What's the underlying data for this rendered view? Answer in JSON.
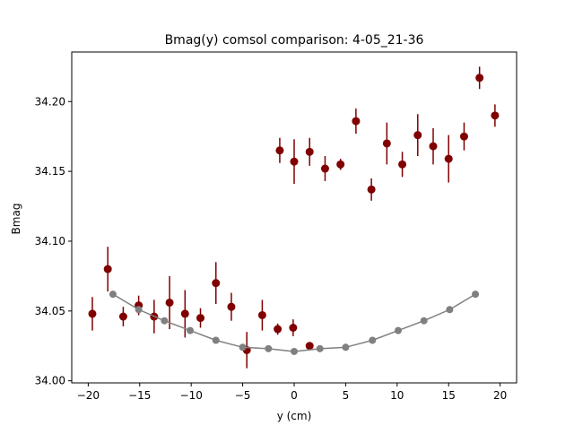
{
  "chart_data": {
    "type": "scatter",
    "title": "Bmag(y) comsol comparison: 4-05_21-36",
    "xlabel": "y (cm)",
    "ylabel": "Bmag",
    "xlim": [
      -21.6,
      21.6
    ],
    "ylim": [
      33.9985,
      34.2355
    ],
    "grid": false,
    "x_ticks": [
      -20,
      -15,
      -10,
      -5,
      0,
      5,
      10,
      15,
      20
    ],
    "x_tick_labels": [
      "−20",
      "−15",
      "−10",
      "−5",
      "0",
      "5",
      "10",
      "15",
      "20"
    ],
    "y_ticks": [
      34.0,
      34.05,
      34.1,
      34.15,
      34.2
    ],
    "y_tick_labels": [
      "34.00",
      "34.05",
      "34.10",
      "34.15",
      "34.20"
    ],
    "series": [
      {
        "style": "points-with-error-bars",
        "color": "#800000",
        "points": [
          {
            "x": -19.6,
            "y": 34.048,
            "err": 0.012
          },
          {
            "x": -18.1,
            "y": 34.08,
            "err": 0.016
          },
          {
            "x": -16.6,
            "y": 34.046,
            "err": 0.007
          },
          {
            "x": -15.1,
            "y": 34.054,
            "err": 0.007
          },
          {
            "x": -13.6,
            "y": 34.046,
            "err": 0.012
          },
          {
            "x": -12.1,
            "y": 34.056,
            "err": 0.019
          },
          {
            "x": -10.6,
            "y": 34.048,
            "err": 0.017
          },
          {
            "x": -9.1,
            "y": 34.045,
            "err": 0.007
          },
          {
            "x": -7.6,
            "y": 34.07,
            "err": 0.015
          },
          {
            "x": -6.1,
            "y": 34.053,
            "err": 0.01
          },
          {
            "x": -4.6,
            "y": 34.022,
            "err": 0.013
          },
          {
            "x": -3.1,
            "y": 34.047,
            "err": 0.011
          },
          {
            "x": -1.6,
            "y": 34.037,
            "err": 0.004
          },
          {
            "x": -0.1,
            "y": 34.038,
            "err": 0.006
          },
          {
            "x": -1.4,
            "y": 34.165,
            "err": 0.009
          },
          {
            "x": 0.0,
            "y": 34.157,
            "err": 0.016
          },
          {
            "x": 1.5,
            "y": 34.164,
            "err": 0.01
          },
          {
            "x": 1.5,
            "y": 34.025,
            "err": 0.002
          },
          {
            "x": 3.0,
            "y": 34.152,
            "err": 0.009
          },
          {
            "x": 4.5,
            "y": 34.155,
            "err": 0.004
          },
          {
            "x": 6.0,
            "y": 34.186,
            "err": 0.009
          },
          {
            "x": 7.5,
            "y": 34.137,
            "err": 0.008
          },
          {
            "x": 9.0,
            "y": 34.17,
            "err": 0.015
          },
          {
            "x": 10.5,
            "y": 34.155,
            "err": 0.009
          },
          {
            "x": 12.0,
            "y": 34.176,
            "err": 0.015
          },
          {
            "x": 13.5,
            "y": 34.168,
            "err": 0.013
          },
          {
            "x": 15.0,
            "y": 34.159,
            "err": 0.017
          },
          {
            "x": 16.5,
            "y": 34.175,
            "err": 0.01
          },
          {
            "x": 18.0,
            "y": 34.217,
            "err": 0.008
          },
          {
            "x": 19.5,
            "y": 34.19,
            "err": 0.008
          }
        ]
      },
      {
        "style": "line-with-markers",
        "color": "#808080",
        "points": [
          {
            "x": -17.6,
            "y": 34.062
          },
          {
            "x": -15.1,
            "y": 34.051
          },
          {
            "x": -12.6,
            "y": 34.043
          },
          {
            "x": -10.1,
            "y": 34.036
          },
          {
            "x": -7.6,
            "y": 34.029
          },
          {
            "x": -5.0,
            "y": 34.024
          },
          {
            "x": -2.5,
            "y": 34.023
          },
          {
            "x": 0.0,
            "y": 34.021
          },
          {
            "x": 2.5,
            "y": 34.023
          },
          {
            "x": 5.0,
            "y": 34.024
          },
          {
            "x": 7.6,
            "y": 34.029
          },
          {
            "x": 10.1,
            "y": 34.036
          },
          {
            "x": 12.6,
            "y": 34.043
          },
          {
            "x": 15.1,
            "y": 34.051
          },
          {
            "x": 17.6,
            "y": 34.062
          }
        ]
      }
    ]
  }
}
